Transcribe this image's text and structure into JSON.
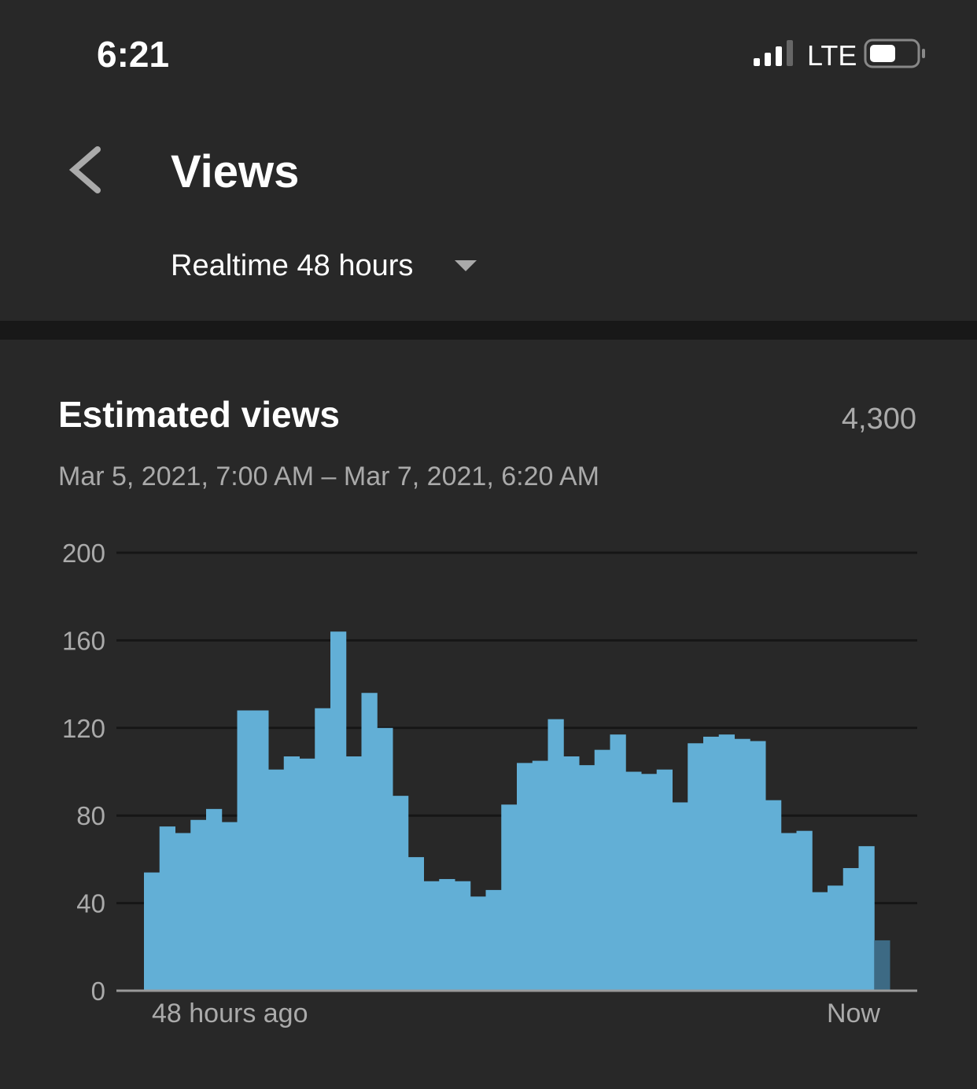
{
  "status_bar": {
    "time": "6:21",
    "network": "LTE"
  },
  "header": {
    "title": "Views",
    "range": "Realtime 48 hours"
  },
  "card": {
    "title": "Estimated views",
    "total": "4,300",
    "date_range": "Mar 5, 2021, 7:00 AM – Mar 7, 2021, 6:20 AM"
  },
  "chart_data": {
    "type": "bar",
    "categories": [
      "48 hours ago",
      null,
      null,
      null,
      null,
      null,
      null,
      null,
      null,
      null,
      null,
      null,
      null,
      null,
      null,
      null,
      null,
      null,
      null,
      null,
      null,
      null,
      null,
      null,
      null,
      null,
      null,
      null,
      null,
      null,
      null,
      null,
      null,
      null,
      null,
      null,
      null,
      null,
      null,
      null,
      null,
      null,
      null,
      null,
      null,
      null,
      null,
      "Now"
    ],
    "values": [
      54,
      75,
      72,
      78,
      83,
      77,
      128,
      128,
      101,
      107,
      106,
      129,
      164,
      107,
      136,
      120,
      89,
      61,
      50,
      51,
      50,
      43,
      46,
      85,
      104,
      105,
      124,
      107,
      103,
      110,
      117,
      100,
      99,
      101,
      86,
      113,
      116,
      117,
      115,
      114,
      87,
      72,
      73,
      45,
      48,
      56,
      66,
      23
    ],
    "colors": [
      "#62afd6",
      "#62afd6",
      "#62afd6",
      "#62afd6",
      "#62afd6",
      "#62afd6",
      "#62afd6",
      "#62afd6",
      "#62afd6",
      "#62afd6",
      "#62afd6",
      "#62afd6",
      "#62afd6",
      "#62afd6",
      "#62afd6",
      "#62afd6",
      "#62afd6",
      "#62afd6",
      "#62afd6",
      "#62afd6",
      "#62afd6",
      "#62afd6",
      "#62afd6",
      "#62afd6",
      "#62afd6",
      "#62afd6",
      "#62afd6",
      "#62afd6",
      "#62afd6",
      "#62afd6",
      "#62afd6",
      "#62afd6",
      "#62afd6",
      "#62afd6",
      "#62afd6",
      "#62afd6",
      "#62afd6",
      "#62afd6",
      "#62afd6",
      "#62afd6",
      "#62afd6",
      "#62afd6",
      "#62afd6",
      "#62afd6",
      "#62afd6",
      "#62afd6",
      "#62afd6",
      "#3d6a84"
    ],
    "ylim": [
      0,
      200
    ],
    "yticks": [
      0,
      40,
      80,
      120,
      160,
      200
    ],
    "grid": true
  }
}
